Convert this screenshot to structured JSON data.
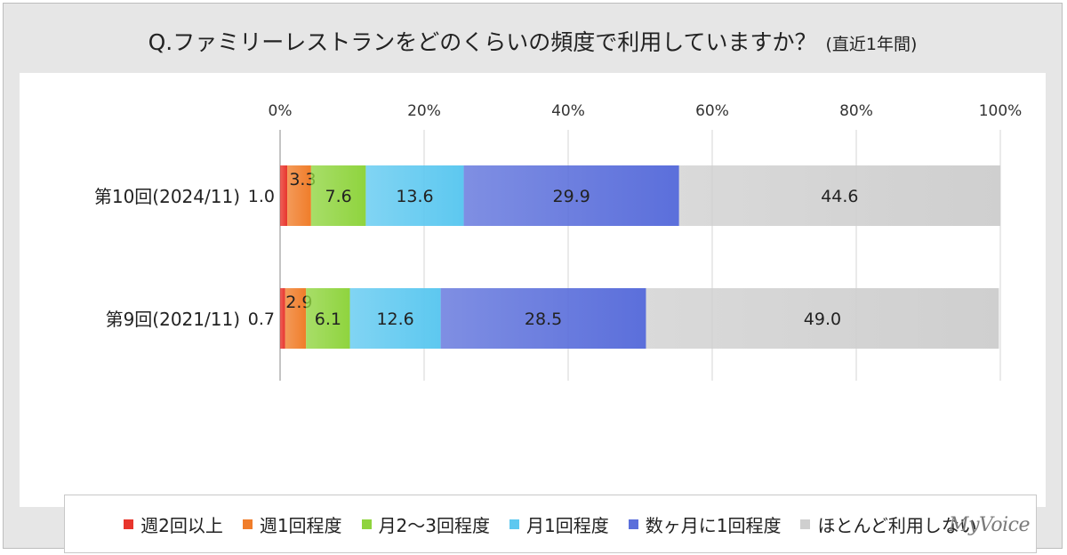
{
  "title": "Q.ファミリーレストランをどのくらいの頻度で利用していますか？",
  "subtitle": "(直近1年間)",
  "logo": "MyVoice",
  "chart_data": {
    "type": "bar",
    "orientation": "horizontal",
    "stacked": true,
    "xlim": [
      0,
      100
    ],
    "x_ticks": [
      "0%",
      "20%",
      "40%",
      "60%",
      "80%",
      "100%"
    ],
    "categories": [
      "第10回(2024/11)",
      "第9回(2021/11)"
    ],
    "series": [
      {
        "name": "週2回以上",
        "values": [
          1.0,
          0.7
        ],
        "color": "#e8352c"
      },
      {
        "name": "週1回程度",
        "values": [
          3.3,
          2.9
        ],
        "color": "#f07d2a"
      },
      {
        "name": "月2～3回程度",
        "values": [
          7.6,
          6.1
        ],
        "color": "#8fd43e"
      },
      {
        "name": "月1回程度",
        "values": [
          13.6,
          12.6
        ],
        "color": "#5dc8f0"
      },
      {
        "name": "数ヶ月に1回程度",
        "values": [
          29.9,
          28.5
        ],
        "color": "#5b6fdb"
      },
      {
        "name": "ほとんど利用しない",
        "values": [
          44.6,
          49.0
        ],
        "color": "#cfcfcf"
      }
    ],
    "value_labels": [
      [
        "1.0",
        "3.3",
        "7.6",
        "13.6",
        "29.9",
        "44.6"
      ],
      [
        "0.7",
        "2.9",
        "6.1",
        "12.6",
        "28.5",
        "49.0"
      ]
    ],
    "legend_position": "bottom",
    "grid": true
  }
}
